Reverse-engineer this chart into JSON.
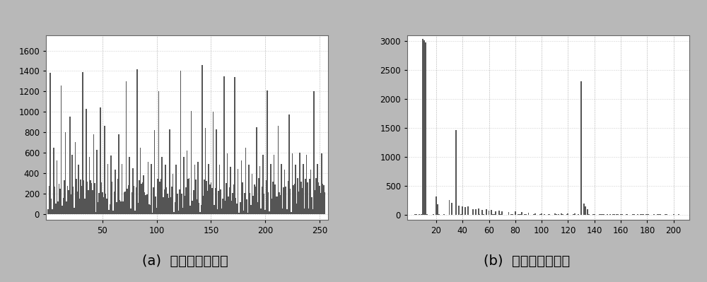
{
  "fig_width": 10.0,
  "fig_height": 3.99,
  "dpi": 100,
  "bg_color": "#b8b8b8",
  "plot_bg_color": "#ffffff",
  "bar_color": "#555555",
  "left_title": "(a)  原始图像直方图",
  "right_title": "(b)  加密图像直方图",
  "left_xlim": [
    -2,
    258
  ],
  "left_ylim": [
    -60,
    1750
  ],
  "left_xticks": [
    50,
    100,
    150,
    200,
    250
  ],
  "left_yticks": [
    0,
    200,
    400,
    600,
    800,
    1000,
    1200,
    1400,
    1600
  ],
  "right_xlim": [
    -2,
    212
  ],
  "right_ylim": [
    -90,
    3100
  ],
  "right_xticks": [
    20,
    40,
    60,
    80,
    100,
    120,
    140,
    160,
    180,
    200
  ],
  "right_yticks": [
    0,
    500,
    1000,
    1500,
    2000,
    2500,
    3000
  ],
  "title_fontsize": 14,
  "tick_fontsize": 8.5
}
